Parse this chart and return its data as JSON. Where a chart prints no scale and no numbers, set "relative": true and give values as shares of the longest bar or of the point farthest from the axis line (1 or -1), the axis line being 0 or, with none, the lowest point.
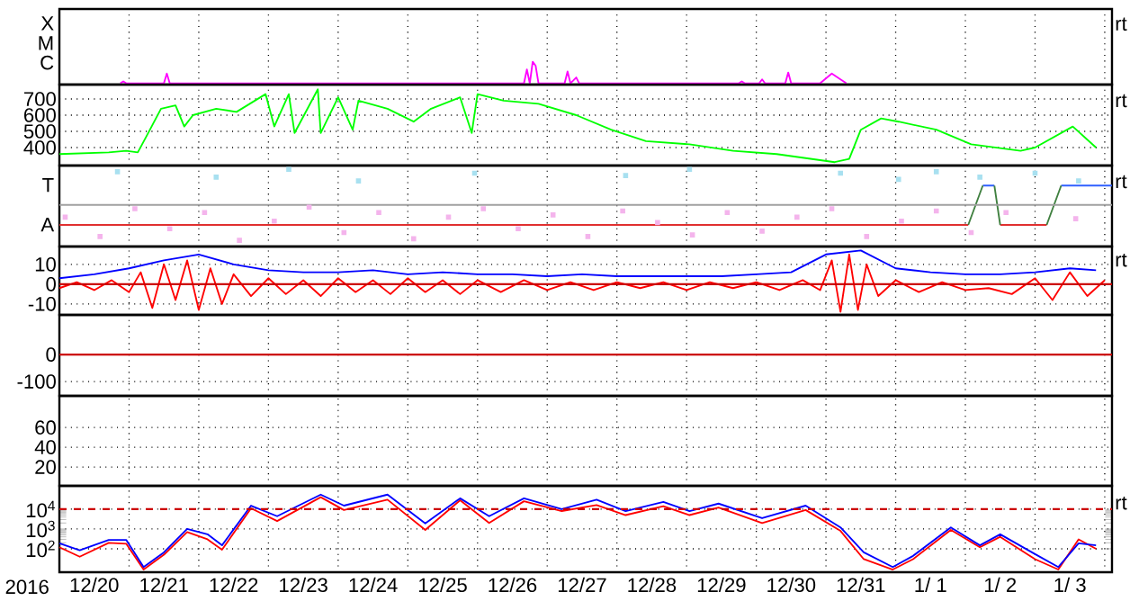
{
  "chart_data": [
    {
      "type": "line",
      "relative": true,
      "xlim": [
        "2016-12-20T00:00",
        "2017-01-04T02:30"
      ],
      "xticks": [
        {
          "value": "2016-12-21T00:00",
          "label": null
        },
        {
          "value": "2016-12-22T00:00",
          "label": null
        },
        {
          "value": "2016-12-23T00:00",
          "label": null
        },
        {
          "value": "2016-12-24T00:00",
          "label": null
        },
        {
          "value": "2016-12-25T00:00",
          "label": null
        },
        {
          "value": "2016-12-26T00:00",
          "label": null
        },
        {
          "value": "2016-12-27T00:00",
          "label": null
        },
        {
          "value": "2016-12-28T00:00",
          "label": null
        },
        {
          "value": "2016-12-29T00:00",
          "label": null
        },
        {
          "value": "2016-12-30T00:00",
          "label": null
        },
        {
          "value": "2016-12-31T00:00",
          "label": null
        },
        {
          "value": "2017-01-01T00:00",
          "label": null
        },
        {
          "value": "2017-01-02T00:00",
          "label": null
        },
        {
          "value": "2017-01-03T00:00",
          "label": null
        },
        {
          "value": "2017-01-04T00:00",
          "label": null
        }
      ],
      "grid": "x",
      "tick_labels": false,
      "annotations": [
        "rt",
        "X",
        "M",
        "C"
      ],
      "series": [
        {
          "color": "#ff00ff",
          "x": [
            "2016-12-20T21:00",
            "2016-12-20T22:00",
            "2016-12-20T23:00",
            "2016-12-21T12:00",
            "2016-12-21T13:00",
            "2016-12-21T14:00",
            "2016-12-26T16:00",
            "2016-12-26T17:00",
            "2016-12-26T18:00",
            "2016-12-26T19:00",
            "2016-12-26T20:00",
            "2016-12-26T21:00",
            "2016-12-27T06:00",
            "2016-12-27T07:00",
            "2016-12-27T08:00",
            "2016-12-27T10:00",
            "2016-12-27T11:00",
            "2016-12-29T18:00",
            "2016-12-29T19:00",
            "2016-12-29T20:00",
            "2016-12-30T01:00",
            "2016-12-30T02:00",
            "2016-12-30T03:00",
            "2016-12-30T10:00",
            "2016-12-30T11:00",
            "2016-12-30T12:00",
            "2016-12-30T22:00",
            "2016-12-31T02:00",
            "2016-12-31T05:00",
            "2016-12-31T07:00"
          ],
          "values": [
            0,
            0.09,
            0,
            0,
            0.45,
            0,
            0,
            0.64,
            0,
            1,
            0.82,
            0,
            0,
            0.55,
            0,
            0.27,
            0,
            0,
            0.09,
            0,
            0,
            0.18,
            0,
            0,
            0.5,
            0,
            0,
            0.45,
            0.18,
            0
          ]
        }
      ]
    },
    {
      "type": "line",
      "xlim": [
        "2016-12-20T00:00",
        "2017-01-04T02:30"
      ],
      "ylim": [
        289,
        789
      ],
      "yticks": [
        400,
        500,
        600,
        700
      ],
      "xticks": [
        {
          "value": "2016-12-21T00:00",
          "label": null
        },
        {
          "value": "2016-12-22T00:00",
          "label": null
        },
        {
          "value": "2016-12-23T00:00",
          "label": null
        },
        {
          "value": "2016-12-24T00:00",
          "label": null
        },
        {
          "value": "2016-12-25T00:00",
          "label": null
        },
        {
          "value": "2016-12-26T00:00",
          "label": null
        },
        {
          "value": "2016-12-27T00:00",
          "label": null
        },
        {
          "value": "2016-12-28T00:00",
          "label": null
        },
        {
          "value": "2016-12-29T00:00",
          "label": null
        },
        {
          "value": "2016-12-30T00:00",
          "label": null
        },
        {
          "value": "2016-12-31T00:00",
          "label": null
        },
        {
          "value": "2017-01-01T00:00",
          "label": null
        },
        {
          "value": "2017-01-02T00:00",
          "label": null
        },
        {
          "value": "2017-01-03T00:00",
          "label": null
        },
        {
          "value": "2017-01-04T00:00",
          "label": null
        }
      ],
      "grid": true,
      "tick_labels": "y",
      "annotations": [
        "rt"
      ],
      "series": [
        {
          "color": "#00ff00",
          "x": [
            "2016-12-20T00:00",
            "2016-12-20T17:00",
            "2016-12-20T23:00",
            "2016-12-21T03:00",
            "2016-12-21T06:00",
            "2016-12-21T11:00",
            "2016-12-21T16:00",
            "2016-12-21T19:00",
            "2016-12-21T22:00",
            "2016-12-22T06:00",
            "2016-12-22T13:00",
            "2016-12-22T23:00",
            "2016-12-23T02:00",
            "2016-12-23T07:00",
            "2016-12-23T09:00",
            "2016-12-23T17:00",
            "2016-12-23T18:00",
            "2016-12-24T00:00",
            "2016-12-24T05:00",
            "2016-12-24T07:00",
            "2016-12-24T17:00",
            "2016-12-25T02:00",
            "2016-12-25T08:00",
            "2016-12-25T18:00",
            "2016-12-25T22:00",
            "2016-12-26T00:00",
            "2016-12-26T09:00",
            "2016-12-26T21:00",
            "2016-12-27T10:00",
            "2016-12-27T22:00",
            "2016-12-28T10:00",
            "2016-12-29T01:00",
            "2016-12-29T16:00",
            "2016-12-30T07:00",
            "2016-12-31T03:00",
            "2016-12-31T08:00",
            "2016-12-31T12:00",
            "2016-12-31T19:00",
            "2017-01-01T01:00",
            "2017-01-01T14:00",
            "2017-01-02T02:00",
            "2017-01-02T19:00",
            "2017-01-03T00:00",
            "2017-01-03T13:00",
            "2017-01-03T21:00"
          ],
          "values": [
            360,
            370,
            380,
            370,
            470,
            640,
            660,
            530,
            600,
            640,
            620,
            730,
            530,
            730,
            490,
            760,
            490,
            710,
            510,
            690,
            640,
            560,
            640,
            710,
            490,
            730,
            690,
            670,
            600,
            510,
            440,
            420,
            380,
            360,
            310,
            330,
            510,
            580,
            560,
            510,
            420,
            380,
            400,
            530,
            400
          ]
        }
      ]
    },
    {
      "type": "line",
      "relative": true,
      "xlim": [
        "2016-12-20T00:00",
        "2017-01-04T02:30"
      ],
      "xticks": [
        {
          "value": "2016-12-21T00:00",
          "label": null
        },
        {
          "value": "2016-12-22T00:00",
          "label": null
        },
        {
          "value": "2016-12-23T00:00",
          "label": null
        },
        {
          "value": "2016-12-24T00:00",
          "label": null
        },
        {
          "value": "2016-12-25T00:00",
          "label": null
        },
        {
          "value": "2016-12-26T00:00",
          "label": null
        },
        {
          "value": "2016-12-27T00:00",
          "label": null
        },
        {
          "value": "2016-12-28T00:00",
          "label": null
        },
        {
          "value": "2016-12-29T00:00",
          "label": null
        },
        {
          "value": "2016-12-30T00:00",
          "label": null
        },
        {
          "value": "2016-12-31T00:00",
          "label": null
        },
        {
          "value": "2017-01-01T00:00",
          "label": null
        },
        {
          "value": "2017-01-02T00:00",
          "label": null
        },
        {
          "value": "2017-01-03T00:00",
          "label": null
        },
        {
          "value": "2017-01-04T00:00",
          "label": null
        }
      ],
      "grid": "x",
      "tick_labels": false,
      "annotations": [
        "rt",
        "T",
        "A"
      ],
      "ref_lines": [
        {
          "axis": "y",
          "value": 0.54,
          "color": "#a0a0a0"
        }
      ],
      "series": [
        {
          "type": "scatter",
          "marker": "square",
          "color": "#f4b4ec",
          "x": [
            "2016-12-20T02:00",
            "2016-12-20T14:00",
            "2016-12-21T02:00",
            "2016-12-21T14:00",
            "2016-12-22T02:00",
            "2016-12-22T14:00",
            "2016-12-23T02:00",
            "2016-12-23T14:00",
            "2016-12-24T02:00",
            "2016-12-24T14:00",
            "2016-12-25T02:00",
            "2016-12-25T14:00",
            "2016-12-26T02:00",
            "2016-12-26T14:00",
            "2016-12-27T02:00",
            "2016-12-27T14:00",
            "2016-12-28T02:00",
            "2016-12-28T14:00",
            "2016-12-29T02:00",
            "2016-12-29T14:00",
            "2016-12-30T02:00",
            "2016-12-30T14:00",
            "2016-12-31T02:00",
            "2016-12-31T14:00",
            "2017-01-01T02:00",
            "2017-01-01T14:00",
            "2017-01-02T02:00",
            "2017-01-02T14:00",
            "2017-01-03T14:00"
          ],
          "values": [
            0.38,
            0.13,
            0.49,
            0.23,
            0.44,
            0.08,
            0.33,
            0.51,
            0.18,
            0.44,
            0.1,
            0.38,
            0.49,
            0.23,
            0.41,
            0.13,
            0.46,
            0.31,
            0.15,
            0.44,
            0.2,
            0.38,
            0.49,
            0.13,
            0.33,
            0.46,
            0.18,
            0.44,
            0.36
          ]
        },
        {
          "type": "scatter",
          "marker": "square",
          "color": "#a8e0f0",
          "x": [
            "2016-12-20T20:00",
            "2016-12-22T06:00",
            "2016-12-23T07:00",
            "2016-12-24T07:00",
            "2016-12-25T23:00",
            "2016-12-28T03:00",
            "2016-12-29T01:00",
            "2016-12-31T05:00",
            "2017-01-01T01:00",
            "2017-01-01T14:00",
            "2017-01-02T05:00",
            "2017-01-03T00:00",
            "2017-01-03T15:00"
          ],
          "values": [
            0.97,
            0.9,
            1,
            0.85,
            0.95,
            0.92,
            1,
            0.95,
            0.87,
            0.97,
            0.9,
            0.95,
            0.85
          ]
        },
        {
          "color": "#e03030",
          "x": [
            "2016-12-20T00:00",
            "2017-01-02T01:00",
            "2017-01-02T06:00",
            "2017-01-02T12:00",
            "2017-01-03T04:00"
          ],
          "values": [
            0.28,
            0.28,
            null,
            0.28,
            0.28
          ]
        },
        {
          "color": "#3060ff",
          "x": [
            "2017-01-02T06:00",
            "2017-01-02T10:00",
            "2017-01-02T11:00",
            "2017-01-03T09:00",
            "2017-01-04T02:30"
          ],
          "values": [
            0.79,
            0.79,
            null,
            0.79,
            0.79
          ]
        },
        {
          "color": "#408040",
          "x": [
            "2017-01-02T01:00",
            "2017-01-02T06:00",
            "2017-01-02T08:00",
            "2017-01-02T10:00",
            "2017-01-02T12:00",
            "2017-01-03T01:00",
            "2017-01-03T04:00",
            "2017-01-03T09:00"
          ],
          "values": [
            0.28,
            0.79,
            null,
            0.79,
            0.28,
            null,
            0.28,
            0.79
          ]
        }
      ]
    },
    {
      "type": "line",
      "xlim": [
        "2016-12-20T00:00",
        "2017-01-04T02:30"
      ],
      "ylim": [
        -15.5,
        19
      ],
      "yticks": [
        -10,
        0,
        10
      ],
      "xticks": [
        {
          "value": "2016-12-21T00:00",
          "label": null
        },
        {
          "value": "2016-12-22T00:00",
          "label": null
        },
        {
          "value": "2016-12-23T00:00",
          "label": null
        },
        {
          "value": "2016-12-24T00:00",
          "label": null
        },
        {
          "value": "2016-12-25T00:00",
          "label": null
        },
        {
          "value": "2016-12-26T00:00",
          "label": null
        },
        {
          "value": "2016-12-27T00:00",
          "label": null
        },
        {
          "value": "2016-12-28T00:00",
          "label": null
        },
        {
          "value": "2016-12-29T00:00",
          "label": null
        },
        {
          "value": "2016-12-30T00:00",
          "label": null
        },
        {
          "value": "2016-12-31T00:00",
          "label": null
        },
        {
          "value": "2017-01-01T00:00",
          "label": null
        },
        {
          "value": "2017-01-02T00:00",
          "label": null
        },
        {
          "value": "2017-01-03T00:00",
          "label": null
        },
        {
          "value": "2017-01-04T00:00",
          "label": null
        }
      ],
      "grid": true,
      "tick_labels": "y",
      "annotations": [
        "rt"
      ],
      "ref_lines": [
        {
          "axis": "y",
          "value": 0,
          "color": "#cc0000"
        }
      ],
      "series": [
        {
          "color": "#ff0000",
          "x": [
            "2016-12-20T00:00",
            "2016-12-20T06:00",
            "2016-12-20T12:00",
            "2016-12-20T18:00",
            "2016-12-21T00:00",
            "2016-12-21T04:00",
            "2016-12-21T08:00",
            "2016-12-21T12:00",
            "2016-12-21T16:00",
            "2016-12-21T20:00",
            "2016-12-22T00:00",
            "2016-12-22T04:00",
            "2016-12-22T08:00",
            "2016-12-22T12:00",
            "2016-12-22T18:00",
            "2016-12-23T00:00",
            "2016-12-23T06:00",
            "2016-12-23T12:00",
            "2016-12-23T18:00",
            "2016-12-24T00:00",
            "2016-12-24T06:00",
            "2016-12-24T12:00",
            "2016-12-24T18:00",
            "2016-12-25T00:00",
            "2016-12-25T06:00",
            "2016-12-25T12:00",
            "2016-12-25T18:00",
            "2016-12-26T00:00",
            "2016-12-26T08:00",
            "2016-12-26T16:00",
            "2016-12-27T00:00",
            "2016-12-27T08:00",
            "2016-12-27T16:00",
            "2016-12-28T00:00",
            "2016-12-28T08:00",
            "2016-12-28T16:00",
            "2016-12-29T00:00",
            "2016-12-29T08:00",
            "2016-12-29T16:00",
            "2016-12-30T00:00",
            "2016-12-30T08:00",
            "2016-12-30T16:00",
            "2016-12-30T22:00",
            "2016-12-31T02:00",
            "2016-12-31T05:00",
            "2016-12-31T08:00",
            "2016-12-31T11:00",
            "2016-12-31T14:00",
            "2016-12-31T18:00",
            "2017-01-01T00:00",
            "2017-01-01T08:00",
            "2017-01-01T16:00",
            "2017-01-02T00:00",
            "2017-01-02T08:00",
            "2017-01-02T16:00",
            "2017-01-03T00:00",
            "2017-01-03T06:00",
            "2017-01-03T12:00",
            "2017-01-03T18:00",
            "2017-01-04T00:00"
          ],
          "values": [
            -2,
            1,
            -3,
            2,
            -4,
            6,
            -12,
            10,
            -8,
            12,
            -13,
            8,
            -10,
            5,
            -6,
            3,
            -5,
            2,
            -6,
            3,
            -4,
            2,
            -5,
            3,
            -4,
            2,
            -5,
            2,
            -4,
            2,
            -3,
            1,
            -3,
            1,
            -2,
            1,
            -3,
            1,
            -2,
            1,
            -3,
            2,
            -3,
            12,
            -14,
            15,
            -13,
            10,
            -6,
            2,
            -4,
            1,
            -3,
            -2,
            -5,
            3,
            -8,
            6,
            -6,
            2
          ]
        },
        {
          "color": "#0000ff",
          "x": [
            "2016-12-20T00:00",
            "2016-12-20T12:00",
            "2016-12-21T00:00",
            "2016-12-21T12:00",
            "2016-12-22T00:00",
            "2016-12-22T12:00",
            "2016-12-23T00:00",
            "2016-12-23T12:00",
            "2016-12-24T00:00",
            "2016-12-24T12:00",
            "2016-12-25T00:00",
            "2016-12-25T12:00",
            "2016-12-26T00:00",
            "2016-12-26T12:00",
            "2016-12-27T00:00",
            "2016-12-27T12:00",
            "2016-12-28T00:00",
            "2016-12-28T12:00",
            "2016-12-29T00:00",
            "2016-12-29T12:00",
            "2016-12-30T00:00",
            "2016-12-30T12:00",
            "2016-12-31T00:00",
            "2016-12-31T12:00",
            "2017-01-01T00:00",
            "2017-01-01T12:00",
            "2017-01-02T00:00",
            "2017-01-02T12:00",
            "2017-01-03T00:00",
            "2017-01-03T12:00",
            "2017-01-03T21:00"
          ],
          "values": [
            3,
            5,
            8,
            12,
            15,
            10,
            7,
            6,
            6,
            7,
            5,
            6,
            5,
            5,
            4,
            5,
            4,
            4,
            4,
            4,
            5,
            6,
            15,
            17,
            8,
            6,
            5,
            5,
            6,
            8,
            7
          ]
        }
      ]
    },
    {
      "type": "line",
      "xlim": [
        "2016-12-20T00:00",
        "2017-01-04T02:30"
      ],
      "ylim": [
        -153,
        147
      ],
      "yticks": [
        -100,
        0
      ],
      "xticks": [
        {
          "value": "2016-12-21T00:00",
          "label": null
        },
        {
          "value": "2016-12-22T00:00",
          "label": null
        },
        {
          "value": "2016-12-23T00:00",
          "label": null
        },
        {
          "value": "2016-12-24T00:00",
          "label": null
        },
        {
          "value": "2016-12-25T00:00",
          "label": null
        },
        {
          "value": "2016-12-26T00:00",
          "label": null
        },
        {
          "value": "2016-12-27T00:00",
          "label": null
        },
        {
          "value": "2016-12-28T00:00",
          "label": null
        },
        {
          "value": "2016-12-29T00:00",
          "label": null
        },
        {
          "value": "2016-12-30T00:00",
          "label": null
        },
        {
          "value": "2016-12-31T00:00",
          "label": null
        },
        {
          "value": "2017-01-01T00:00",
          "label": null
        },
        {
          "value": "2017-01-02T00:00",
          "label": null
        },
        {
          "value": "2017-01-03T00:00",
          "label": null
        },
        {
          "value": "2017-01-04T00:00",
          "label": null
        }
      ],
      "grid": true,
      "tick_labels": "y",
      "ref_lines": [
        {
          "axis": "y",
          "value": 0,
          "color": "#cc0000"
        }
      ]
    },
    {
      "type": "line",
      "xlim": [
        "2016-12-20T00:00",
        "2017-01-04T02:30"
      ],
      "ylim": [
        1,
        92
      ],
      "yticks": [
        20,
        40,
        60
      ],
      "xticks": [
        {
          "value": "2016-12-21T00:00",
          "label": null
        },
        {
          "value": "2016-12-22T00:00",
          "label": null
        },
        {
          "value": "2016-12-23T00:00",
          "label": null
        },
        {
          "value": "2016-12-24T00:00",
          "label": null
        },
        {
          "value": "2016-12-25T00:00",
          "label": null
        },
        {
          "value": "2016-12-26T00:00",
          "label": null
        },
        {
          "value": "2016-12-27T00:00",
          "label": null
        },
        {
          "value": "2016-12-28T00:00",
          "label": null
        },
        {
          "value": "2016-12-29T00:00",
          "label": null
        },
        {
          "value": "2016-12-30T00:00",
          "label": null
        },
        {
          "value": "2016-12-31T00:00",
          "label": null
        },
        {
          "value": "2017-01-01T00:00",
          "label": null
        },
        {
          "value": "2017-01-02T00:00",
          "label": null
        },
        {
          "value": "2017-01-03T00:00",
          "label": null
        },
        {
          "value": "2017-01-04T00:00",
          "label": null
        }
      ],
      "grid": true,
      "tick_labels": "y"
    },
    {
      "type": "line",
      "log": true,
      "xlim": [
        "2016-12-20T00:00",
        "2017-01-04T02:30"
      ],
      "ylim": [
        6.6,
        150000
      ],
      "yticks": [
        {
          "value": 100,
          "label": "10$^{2}$"
        },
        {
          "value": 1000,
          "label": "10$^{3}$"
        },
        {
          "value": 10000,
          "label": "10$^{4}$"
        }
      ],
      "xticks": [
        {
          "value": "2016-12-20T12:00",
          "label": "12/20"
        },
        {
          "value": "2016-12-21T00:00",
          "label": null
        },
        {
          "value": "2016-12-21T12:00",
          "label": "12/21"
        },
        {
          "value": "2016-12-22T00:00",
          "label": null
        },
        {
          "value": "2016-12-22T12:00",
          "label": "12/22"
        },
        {
          "value": "2016-12-23T00:00",
          "label": null
        },
        {
          "value": "2016-12-23T12:00",
          "label": "12/23"
        },
        {
          "value": "2016-12-24T00:00",
          "label": null
        },
        {
          "value": "2016-12-24T12:00",
          "label": "12/24"
        },
        {
          "value": "2016-12-25T00:00",
          "label": null
        },
        {
          "value": "2016-12-25T12:00",
          "label": "12/25"
        },
        {
          "value": "2016-12-26T00:00",
          "label": null
        },
        {
          "value": "2016-12-26T12:00",
          "label": "12/26"
        },
        {
          "value": "2016-12-27T00:00",
          "label": null
        },
        {
          "value": "2016-12-27T12:00",
          "label": "12/27"
        },
        {
          "value": "2016-12-28T00:00",
          "label": null
        },
        {
          "value": "2016-12-28T12:00",
          "label": "12/28"
        },
        {
          "value": "2016-12-29T00:00",
          "label": null
        },
        {
          "value": "2016-12-29T12:00",
          "label": "12/29"
        },
        {
          "value": "2016-12-30T00:00",
          "label": null
        },
        {
          "value": "2016-12-30T12:00",
          "label": "12/30"
        },
        {
          "value": "2016-12-31T00:00",
          "label": null
        },
        {
          "value": "2016-12-31T12:00",
          "label": "12/31"
        },
        {
          "value": "2017-01-01T00:00",
          "label": null
        },
        {
          "value": "2017-01-01T12:00",
          "label": "1/ 1"
        },
        {
          "value": "2017-01-02T00:00",
          "label": null
        },
        {
          "value": "2017-01-02T12:00",
          "label": "1/ 2"
        },
        {
          "value": "2017-01-03T00:00",
          "label": null
        },
        {
          "value": "2017-01-03T12:00",
          "label": "1/ 3"
        },
        {
          "value": "2017-01-04T00:00",
          "label": null
        }
      ],
      "grid": true,
      "xlabel": "2016",
      "annotations": [
        "rt"
      ],
      "ref_lines": [
        {
          "axis": "y",
          "value": 10000,
          "color": "#cc0000",
          "line_style": "dashed"
        }
      ],
      "series": [
        {
          "color": "#ff0000",
          "x": [
            "2016-12-20T00:00",
            "2016-12-20T07:00",
            "2016-12-20T17:00",
            "2016-12-20T23:00",
            "2016-12-21T05:00",
            "2016-12-21T12:00",
            "2016-12-21T20:00",
            "2016-12-22T03:00",
            "2016-12-22T08:00",
            "2016-12-22T18:00",
            "2016-12-23T03:00",
            "2016-12-23T18:00",
            "2016-12-24T02:00",
            "2016-12-24T17:00",
            "2016-12-25T06:00",
            "2016-12-25T18:00",
            "2016-12-26T04:00",
            "2016-12-26T16:00",
            "2016-12-27T05:00",
            "2016-12-27T17:00",
            "2016-12-28T03:00",
            "2016-12-28T16:00",
            "2016-12-29T01:00",
            "2016-12-29T11:00",
            "2016-12-30T02:00",
            "2016-12-30T17:00",
            "2016-12-31T05:00",
            "2016-12-31T13:00",
            "2016-12-31T23:00",
            "2017-01-01T06:00",
            "2017-01-01T19:00",
            "2017-01-02T05:00",
            "2017-01-02T12:00",
            "2017-01-03T00:00",
            "2017-01-03T08:00",
            "2017-01-03T15:00",
            "2017-01-03T21:00"
          ],
          "values": [
            120,
            40,
            200,
            180,
            9,
            50,
            700,
            300,
            90,
            11000,
            2500,
            40000,
            9000,
            30000,
            900,
            28000,
            2000,
            25000,
            8000,
            16000,
            5000,
            14000,
            5000,
            12000,
            2000,
            9000,
            800,
            30,
            9,
            30,
            900,
            120,
            400,
            30,
            9,
            300,
            100
          ]
        },
        {
          "color": "#0000ff",
          "x": [
            "2016-12-20T00:00",
            "2016-12-20T07:00",
            "2016-12-20T17:00",
            "2016-12-20T23:00",
            "2016-12-21T05:00",
            "2016-12-21T12:00",
            "2016-12-21T20:00",
            "2016-12-22T03:00",
            "2016-12-22T08:00",
            "2016-12-22T18:00",
            "2016-12-23T03:00",
            "2016-12-23T18:00",
            "2016-12-24T02:00",
            "2016-12-24T17:00",
            "2016-12-25T06:00",
            "2016-12-25T18:00",
            "2016-12-26T04:00",
            "2016-12-26T16:00",
            "2016-12-27T05:00",
            "2016-12-27T17:00",
            "2016-12-28T03:00",
            "2016-12-28T16:00",
            "2016-12-29T01:00",
            "2016-12-29T11:00",
            "2016-12-30T02:00",
            "2016-12-30T17:00",
            "2016-12-31T05:00",
            "2016-12-31T13:00",
            "2016-12-31T23:00",
            "2017-01-01T06:00",
            "2017-01-01T19:00",
            "2017-01-02T05:00",
            "2017-01-02T12:00",
            "2017-01-03T00:00",
            "2017-01-03T08:00",
            "2017-01-03T15:00",
            "2017-01-03T21:00"
          ],
          "values": [
            190,
            85,
            280,
            280,
            12,
            66,
            1000,
            540,
            150,
            15000,
            4400,
            54000,
            15000,
            54000,
            1900,
            35000,
            4400,
            35000,
            10000,
            30000,
            7900,
            23000,
            7900,
            19000,
            3500,
            15000,
            1200,
            66,
            12,
            44,
            1200,
            150,
            540,
            54,
            12,
            190,
            150
          ]
        }
      ]
    }
  ]
}
